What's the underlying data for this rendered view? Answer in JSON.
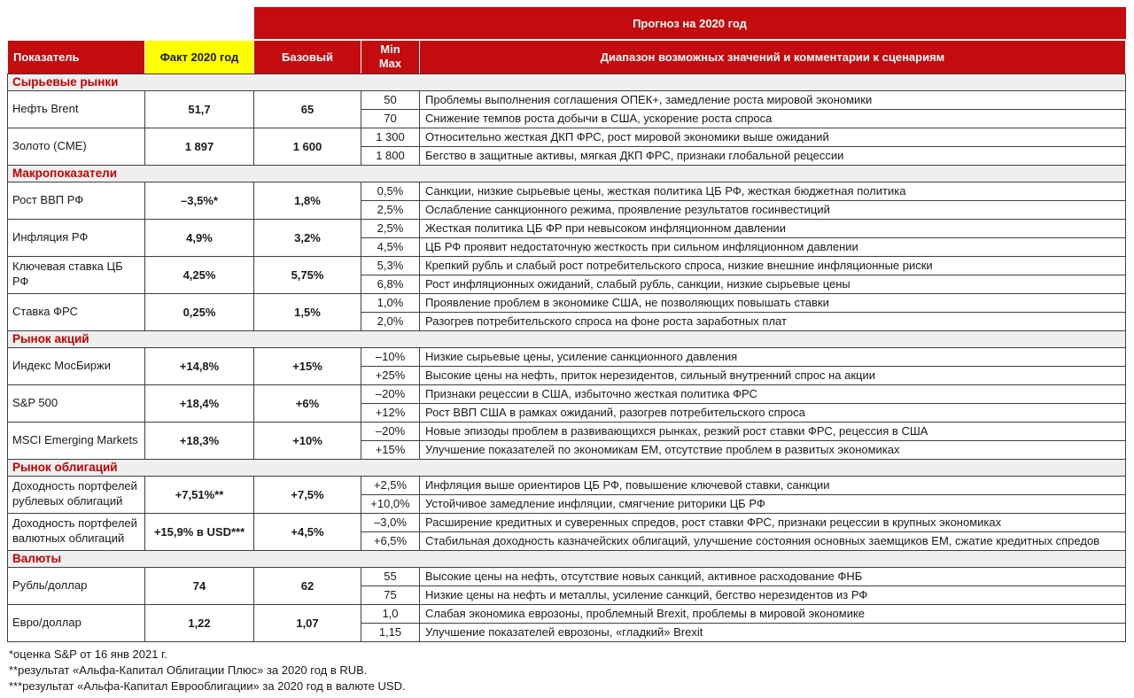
{
  "banner": {
    "title": "Прогноз на 2020 год"
  },
  "header": {
    "indicator": "Показатель",
    "fact": "Факт 2020 год",
    "base": "Базовый",
    "min": "Min",
    "max": "Max",
    "range": "Диапазон возможных значений и комментарии к сценариям"
  },
  "colors": {
    "header_red": "#c40b0e",
    "section_text_red": "#c00000",
    "fact_yellow": "#ffff00",
    "section_bg": "#efefef",
    "border": "#3f3f3f"
  },
  "sections": [
    {
      "title": "Сырьевые рынки",
      "rows": [
        {
          "indicator": "Нефть Brent",
          "fact": "51,7",
          "base": "65",
          "scenarios": [
            {
              "value": "50",
              "comment": "Проблемы выполнения соглашения ОПЕК+, замедление роста мировой экономики"
            },
            {
              "value": "70",
              "comment": "Снижение темпов роста добычи в США, ускорение роста спроса"
            }
          ]
        },
        {
          "indicator": "Золото (CME)",
          "fact": "1 897",
          "base": "1 600",
          "scenarios": [
            {
              "value": "1 300",
              "comment": "Относительно жесткая ДКП ФРС, рост мировой экономики выше ожиданий"
            },
            {
              "value": "1 800",
              "comment": "Бегство в защитные активы, мягкая ДКП ФРС, признаки глобальной рецессии"
            }
          ]
        }
      ]
    },
    {
      "title": "Макропоказатели",
      "rows": [
        {
          "indicator": "Рост ВВП РФ",
          "fact": "–3,5%*",
          "base": "1,8%",
          "scenarios": [
            {
              "value": "0,5%",
              "comment": "Санкции, низкие сырьевые цены, жесткая политика ЦБ РФ, жесткая бюджетная политика"
            },
            {
              "value": "2,5%",
              "comment": "Ослабление санкционного режима, проявление результатов госинвестиций"
            }
          ]
        },
        {
          "indicator": "Инфляция РФ",
          "fact": "4,9%",
          "base": "3,2%",
          "scenarios": [
            {
              "value": "2,5%",
              "comment": "Жесткая политика ЦБ ФР при невысоком инфляционном давлении"
            },
            {
              "value": "4,5%",
              "comment": "ЦБ РФ проявит недостаточную жесткость при сильном инфляционном давлении"
            }
          ]
        },
        {
          "indicator": "Ключевая ставка ЦБ РФ",
          "fact": "4,25%",
          "base": "5,75%",
          "scenarios": [
            {
              "value": "5,3%",
              "comment": "Крепкий рубль и слабый рост потребительского спроса, низкие внешние инфляционные риски"
            },
            {
              "value": "6,8%",
              "comment": "Рост инфляционных ожиданий, слабый рубль, санкции, низкие сырьевые цены"
            }
          ]
        },
        {
          "indicator": "Ставка ФРС",
          "fact": "0,25%",
          "base": "1,5%",
          "scenarios": [
            {
              "value": "1,0%",
              "comment": "Проявление проблем в экономике США, не позволяющих повышать ставки"
            },
            {
              "value": "2,0%",
              "comment": "Разогрев потребительского спроса на фоне роста заработных плат"
            }
          ]
        }
      ]
    },
    {
      "title": "Рынок акций",
      "rows": [
        {
          "indicator": "Индекс МосБиржи",
          "fact": "+14,8%",
          "base": "+15%",
          "scenarios": [
            {
              "value": "–10%",
              "comment": "Низкие сырьевые цены, усиление санкционного давления"
            },
            {
              "value": "+25%",
              "comment": "Высокие цены на нефть, приток нерезидентов, сильный внутренний спрос на акции"
            }
          ]
        },
        {
          "indicator": "S&P 500",
          "fact": "+18,4%",
          "base": "+6%",
          "scenarios": [
            {
              "value": "–20%",
              "comment": "Признаки рецессии в США, избыточно жесткая политика ФРС"
            },
            {
              "value": "+12%",
              "comment": "Рост ВВП США в рамках ожиданий, разогрев потребительского спроса"
            }
          ]
        },
        {
          "indicator": "MSCI Emerging Markets",
          "fact": "+18,3%",
          "base": "+10%",
          "scenarios": [
            {
              "value": "–20%",
              "comment": "Новые эпизоды проблем в развивающихся рынках, резкий рост ставки ФРС, рецессия в США"
            },
            {
              "value": "+15%",
              "comment": "Улучшение показателей по экономикам ЕМ, отсутствие проблем в развитых экономиках"
            }
          ]
        }
      ]
    },
    {
      "title": "Рынок облигаций",
      "rows": [
        {
          "indicator": "Доходность портфелей рублевых облигаций",
          "fact": "+7,51%**",
          "base": "+7,5%",
          "scenarios": [
            {
              "value": "+2,5%",
              "comment": "Инфляция выше ориентиров ЦБ РФ, повышение ключевой ставки, санкции"
            },
            {
              "value": "+10,0%",
              "comment": "Устойчивое замедление инфляции, смягчение риторики ЦБ РФ"
            }
          ]
        },
        {
          "indicator": "Доходность портфелей валютных облигаций",
          "fact": "+15,9% в USD***",
          "base": "+4,5%",
          "scenarios": [
            {
              "value": "–3,0%",
              "comment": "Расширение кредитных и суверенных спредов, рост ставки ФРС, признаки рецессии в крупных экономиках"
            },
            {
              "value": "+6,5%",
              "comment": "Стабильная доходность казначейских облигаций, улучшение состояния основных заемщиков ЕМ, сжатие кредитных спредов"
            }
          ]
        }
      ]
    },
    {
      "title": "Валюты",
      "rows": [
        {
          "indicator": "Рубль/доллар",
          "fact": "74",
          "base": "62",
          "scenarios": [
            {
              "value": "55",
              "comment": "Высокие цены на нефть, отсутствие новых санкций, активное расходование ФНБ"
            },
            {
              "value": "75",
              "comment": "Низкие цены на нефть и металлы, усиление санкций, бегство нерезидентов из РФ"
            }
          ]
        },
        {
          "indicator": "Евро/доллар",
          "fact": "1,22",
          "base": "1,07",
          "scenarios": [
            {
              "value": "1,0",
              "comment": "Слабая экономика еврозоны, проблемный Brexit, проблемы в мировой экономике"
            },
            {
              "value": "1,15",
              "comment": "Улучшение показателей еврозоны, «гладкий» Brexit"
            }
          ]
        }
      ]
    }
  ],
  "footnotes": [
    "*оценка S&P от 16 янв 2021 г.",
    "**результат «Альфа-Капитал Облигации Плюс» за 2020 год в RUB.",
    "***результат «Альфа-Капитал Еврооблигации» за 2020 год в валюте USD."
  ]
}
